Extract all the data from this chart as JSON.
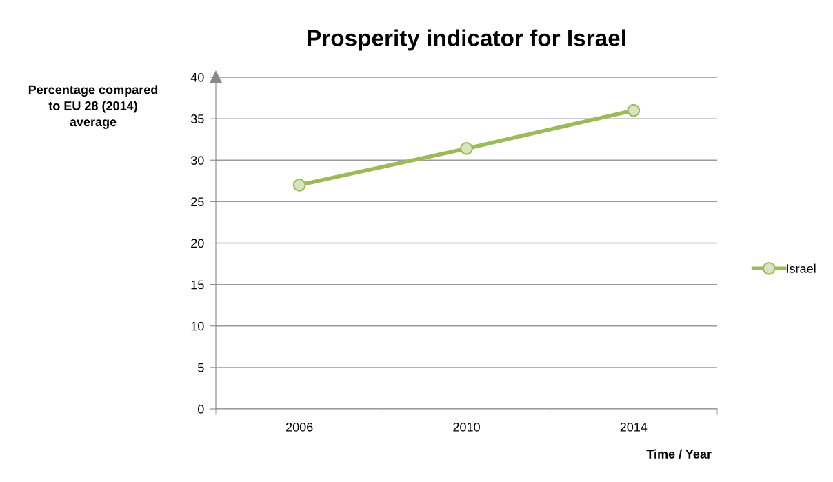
{
  "chart_data": {
    "type": "line",
    "title": "Prosperity indicator for Israel",
    "xlabel": "Time / Year",
    "ylabel": "Percentage compared\nto EU 28 (2014)\naverage",
    "categories": [
      "2006",
      "2010",
      "2014"
    ],
    "series": [
      {
        "name": "Israel",
        "color": "#9bbb59",
        "values": [
          27.0,
          31.4,
          36.0
        ]
      }
    ],
    "ylim": [
      0,
      40
    ],
    "yticks": [
      0,
      5,
      10,
      15,
      20,
      25,
      30,
      35,
      40
    ],
    "grid": "y",
    "legend": "right",
    "marker": "circle",
    "line_style": "solid"
  }
}
